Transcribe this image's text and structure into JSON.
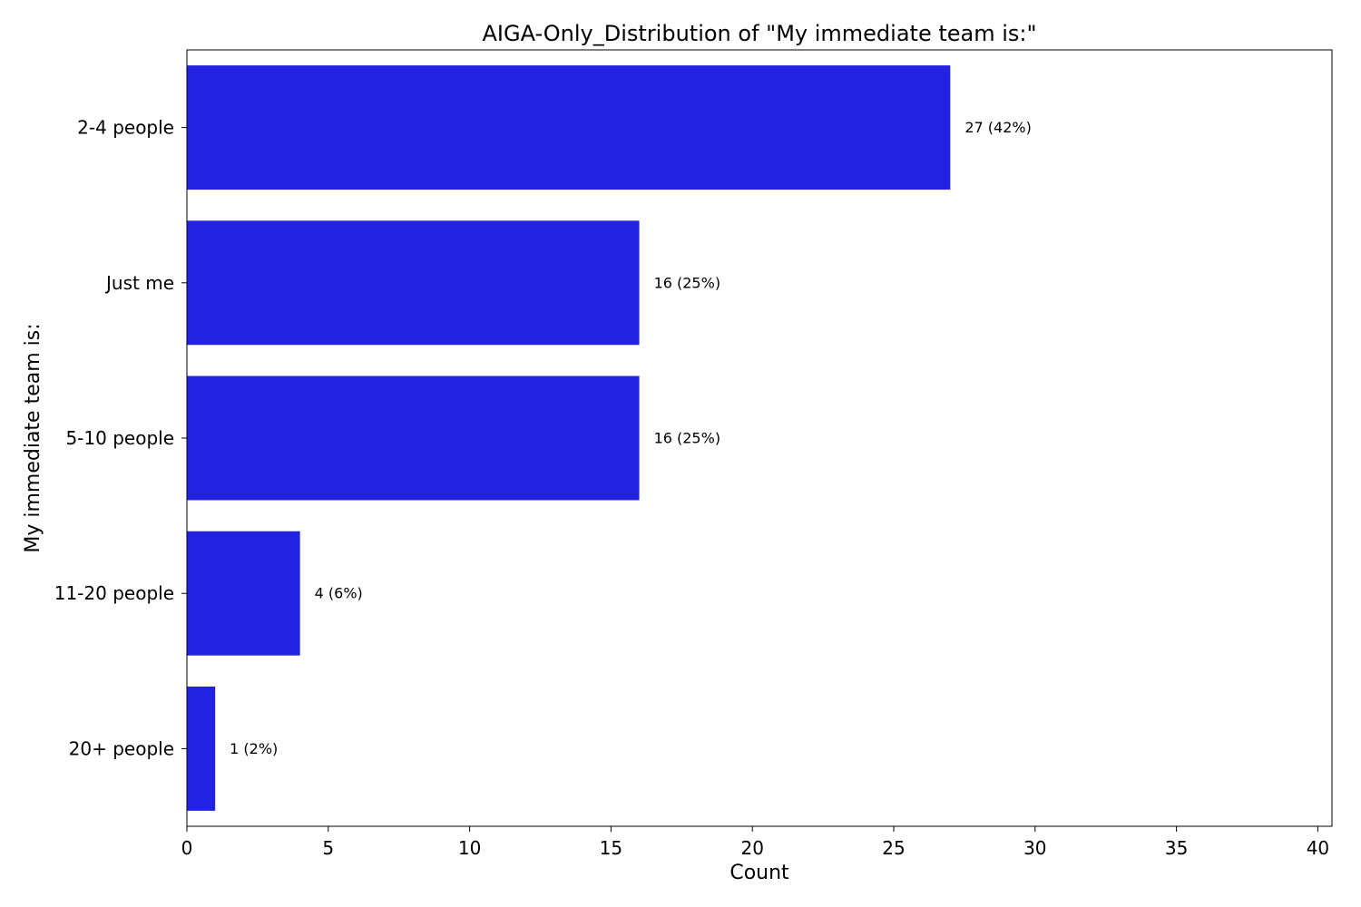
{
  "chart_data": {
    "type": "bar",
    "orientation": "horizontal",
    "title": "AIGA-Only_Distribution of \"My immediate team is:\"",
    "xlabel": "Count",
    "ylabel": "My immediate team is:",
    "categories": [
      "2-4 people",
      "Just me",
      "5-10 people",
      "11-20 people",
      "20+ people"
    ],
    "values": [
      27,
      16,
      16,
      4,
      1
    ],
    "data_labels": [
      "27 (42%)",
      "16 (25%)",
      "16 (25%)",
      "4 (6%)",
      "1 (2%)"
    ],
    "xlim": [
      0,
      40.5
    ],
    "xticks": [
      0,
      5,
      10,
      15,
      20,
      25,
      30,
      35,
      40
    ],
    "grid": false,
    "bar_color": "#2222e0"
  }
}
